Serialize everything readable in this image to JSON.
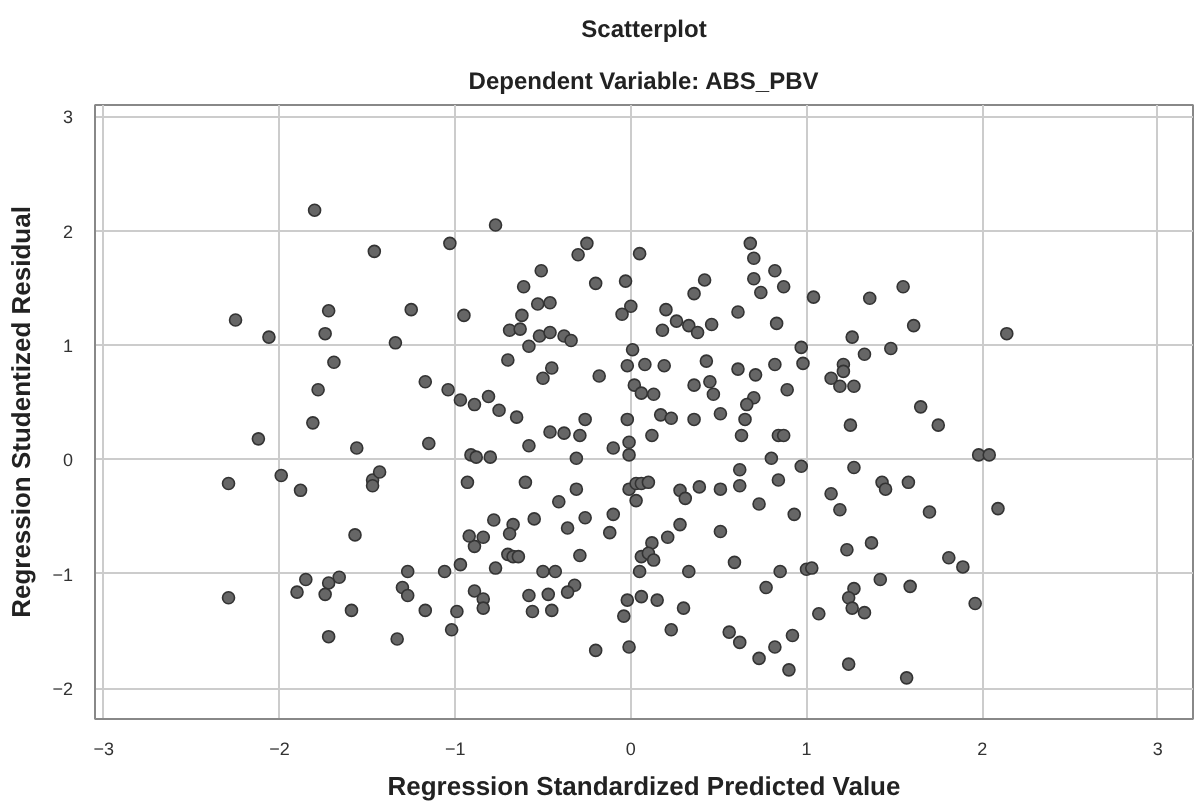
{
  "chart_data": {
    "type": "scatter",
    "title": "Scatterplot",
    "subtitle": "Dependent Variable: ABS_PBV",
    "xlabel": "Regression Standardized Predicted Value",
    "ylabel": "Regression Studentized Residual",
    "xlim": [
      -3.05,
      3.2
    ],
    "ylim": [
      -2.27,
      3.1
    ],
    "xticks": [
      -3,
      -2,
      -1,
      0,
      1,
      2,
      3
    ],
    "yticks": [
      -2,
      -1,
      0,
      1,
      2,
      3
    ],
    "grid": true,
    "marker": "circle",
    "series": [
      {
        "color": "#666666",
        "x": [
          -1.8,
          -1.46,
          -1.03,
          -2.25,
          -2.06,
          -1.72,
          -1.74,
          -1.25,
          -0.95,
          -1.34,
          -1.69,
          -1.78,
          -1.17,
          -1.04,
          -0.97,
          -1.81,
          -2.12,
          -1.56,
          -1.15,
          -2.29,
          -1.99,
          -1.88,
          -1.47,
          -1.47,
          -1.43,
          -1.57,
          -0.97,
          -1.06,
          -1.27,
          -1.3,
          -1.27,
          -1.17,
          -0.99,
          -1.02,
          -1.33,
          -1.59,
          -1.72,
          -1.66,
          -1.72,
          -1.74,
          -1.85,
          -1.9,
          -2.29,
          -0.77,
          -0.3,
          -0.25,
          -0.2,
          -0.03,
          0.05,
          -0.51,
          -0.61,
          -0.53,
          -0.46,
          -0.62,
          -0.69,
          -0.63,
          -0.52,
          -0.58,
          -0.46,
          -0.38,
          -0.34,
          -0.7,
          -0.5,
          -0.45,
          -0.18,
          0.0,
          -0.05,
          0.01,
          -0.02,
          0.08,
          0.19,
          0.02,
          0.06,
          0.13,
          0.2,
          0.26,
          0.18,
          0.33,
          0.38,
          0.36,
          0.42,
          0.46,
          0.68,
          0.7,
          0.7,
          0.74,
          0.82,
          0.87,
          1.04,
          0.83,
          0.61,
          0.43,
          0.36,
          0.45,
          0.47,
          0.61,
          0.71,
          0.82,
          0.89,
          0.97,
          0.98,
          0.7,
          0.66,
          0.65,
          0.51,
          0.63,
          0.84,
          0.87,
          0.8,
          0.97,
          0.84,
          0.93,
          0.73,
          0.62,
          0.62,
          0.51,
          0.39,
          0.28,
          0.31,
          0.28,
          0.21,
          0.12,
          0.06,
          0.1,
          0.13,
          0.05,
          0.33,
          0.51,
          0.59,
          0.77,
          0.85,
          1.0,
          1.03,
          1.07,
          0.92,
          0.82,
          0.9,
          0.73,
          0.62,
          0.56,
          0.23,
          0.3,
          0.15,
          0.06,
          -0.02,
          -0.04,
          -0.01,
          -0.2,
          -0.02,
          -0.01,
          -0.01,
          -0.1,
          0.12,
          0.17,
          0.23,
          0.36,
          -0.01,
          0.03,
          0.06,
          0.1,
          0.03,
          -0.1,
          -0.12,
          -0.26,
          -0.31,
          -0.31,
          -0.29,
          -0.26,
          -0.38,
          -0.46,
          -0.58,
          -0.65,
          -0.75,
          -0.81,
          -0.89,
          -0.91,
          -0.88,
          -0.8,
          -0.93,
          -0.6,
          -0.41,
          -0.36,
          -0.29,
          -0.32,
          -0.36,
          -0.43,
          -0.5,
          -0.55,
          -0.67,
          -0.69,
          -0.7,
          -0.67,
          -0.64,
          -0.77,
          -0.78,
          -0.84,
          -0.89,
          -0.92,
          -0.89,
          -0.84,
          -0.84,
          -0.58,
          -0.56,
          -0.47,
          -0.45,
          1.55,
          1.36,
          1.61,
          1.26,
          1.33,
          1.48,
          2.14,
          1.21,
          1.21,
          1.19,
          1.27,
          1.25,
          1.65,
          1.75,
          1.98,
          2.04,
          1.27,
          1.43,
          1.45,
          1.58,
          1.7,
          2.09,
          1.19,
          1.23,
          1.37,
          1.81,
          1.89,
          1.27,
          1.24,
          1.26,
          1.33,
          1.42,
          1.59,
          1.96,
          1.24,
          1.57,
          1.14,
          1.14
        ],
        "values": [
          2.18,
          1.82,
          1.89,
          1.22,
          1.07,
          1.3,
          1.1,
          1.31,
          1.26,
          1.02,
          0.85,
          0.61,
          0.68,
          0.61,
          0.52,
          0.32,
          0.18,
          0.1,
          0.14,
          -0.21,
          -0.14,
          -0.27,
          -0.18,
          -0.23,
          -0.11,
          -0.66,
          -0.92,
          -0.98,
          -0.98,
          -1.12,
          -1.19,
          -1.32,
          -1.33,
          -1.49,
          -1.57,
          -1.32,
          -1.55,
          -1.03,
          -1.08,
          -1.18,
          -1.05,
          -1.16,
          -1.21,
          2.05,
          1.79,
          1.89,
          1.54,
          1.56,
          1.8,
          1.65,
          1.51,
          1.36,
          1.37,
          1.26,
          1.13,
          1.14,
          1.08,
          0.99,
          1.11,
          1.08,
          1.04,
          0.87,
          0.71,
          0.8,
          0.73,
          1.34,
          1.27,
          0.96,
          0.82,
          0.83,
          0.82,
          0.65,
          0.58,
          0.57,
          1.31,
          1.21,
          1.13,
          1.17,
          1.11,
          1.45,
          1.57,
          1.18,
          1.89,
          1.76,
          1.58,
          1.46,
          1.65,
          1.51,
          1.42,
          1.19,
          1.29,
          0.86,
          0.65,
          0.68,
          0.57,
          0.79,
          0.74,
          0.83,
          0.61,
          0.98,
          0.84,
          0.54,
          0.48,
          0.35,
          0.4,
          0.21,
          0.21,
          0.21,
          0.01,
          -0.06,
          -0.18,
          -0.48,
          -0.39,
          -0.09,
          -0.23,
          -0.26,
          -0.24,
          -0.27,
          -0.34,
          -0.57,
          -0.68,
          -0.73,
          -0.85,
          -0.82,
          -0.88,
          -0.98,
          -0.98,
          -0.63,
          -0.9,
          -1.12,
          -0.98,
          -0.96,
          -0.95,
          -1.35,
          -1.54,
          -1.64,
          -1.84,
          -1.74,
          -1.6,
          -1.51,
          -1.49,
          -1.3,
          -1.23,
          -1.2,
          -1.23,
          -1.37,
          -1.64,
          -1.67,
          0.35,
          0.15,
          0.04,
          0.1,
          0.21,
          0.39,
          0.36,
          0.35,
          -0.26,
          -0.21,
          -0.21,
          -0.2,
          -0.36,
          -0.48,
          -0.64,
          -0.51,
          -0.26,
          0.01,
          0.21,
          0.35,
          0.23,
          0.24,
          0.12,
          0.37,
          0.43,
          0.55,
          0.48,
          0.04,
          0.02,
          0.02,
          -0.2,
          -0.2,
          -0.37,
          -0.6,
          -0.84,
          -1.1,
          -1.16,
          -0.98,
          -0.98,
          -0.52,
          -0.57,
          -0.65,
          -0.83,
          -0.85,
          -0.85,
          -0.95,
          -0.53,
          -0.68,
          -0.76,
          -0.67,
          -1.15,
          -1.22,
          -1.3,
          -1.19,
          -1.33,
          -1.18,
          -1.32,
          1.51,
          1.41,
          1.17,
          1.07,
          0.92,
          0.97,
          1.1,
          0.83,
          0.77,
          0.64,
          0.64,
          0.3,
          0.46,
          0.3,
          0.04,
          0.04,
          -0.07,
          -0.2,
          -0.26,
          -0.2,
          -0.46,
          -0.43,
          -0.44,
          -0.79,
          -0.73,
          -0.86,
          -0.94,
          -1.13,
          -1.21,
          -1.3,
          -1.34,
          -1.05,
          -1.11,
          -1.26,
          -1.79,
          -1.91,
          0.71,
          -0.3
        ]
      }
    ]
  }
}
